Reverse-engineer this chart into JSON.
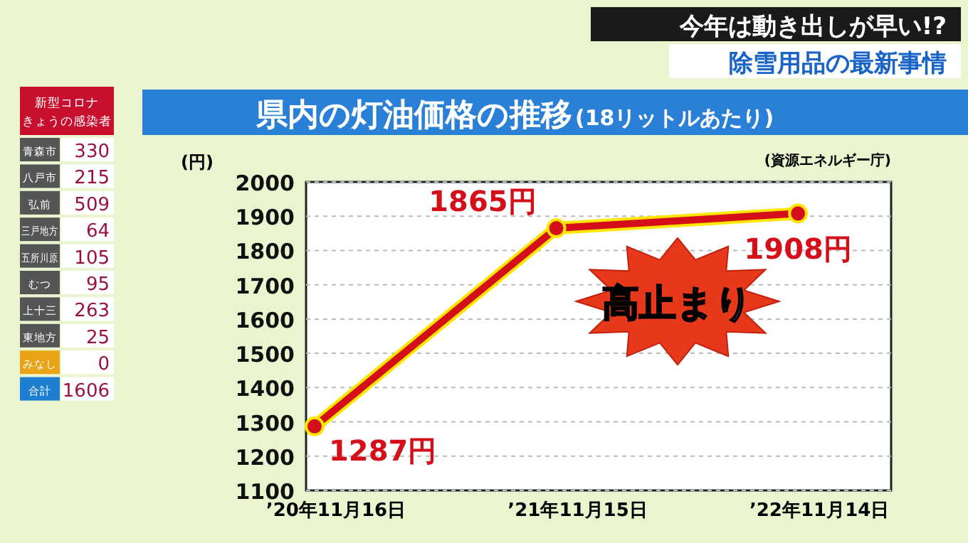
{
  "chart_data": [
    {
      "type": "line",
      "title": "県内の灯油価格の推移",
      "subtitle": "(18リットルあたり)",
      "ylabel": "(円)",
      "categories": [
        "’20年11月16日",
        "’21年11月15日",
        "’22年11月14日"
      ],
      "series": [
        {
          "color": "#d40f1a",
          "values": [
            1287,
            1865,
            1908
          ],
          "value_labels": [
            "1287円",
            "1865円",
            "1908円"
          ]
        }
      ],
      "ylim": [
        1100,
        2000
      ],
      "yticks": [
        1100,
        1200,
        1300,
        1400,
        1500,
        1600,
        1700,
        1800,
        1900,
        2000
      ],
      "grid": "y",
      "marker": "circle",
      "line_style": "solid",
      "annotations": [
        "高止まり",
        "(資源エネルギー庁)",
        "今年は動き出しが早い!?",
        "除雪用品の最新事情"
      ]
    },
    {
      "type": "other",
      "title": "新型コロナ",
      "subtitle": "きょうの感染者",
      "categories": [
        "青森市",
        "八戸市",
        "弘前",
        "三戸地方",
        "五所川原",
        "むつ",
        "上十三",
        "東地方",
        "みなし",
        "合計"
      ],
      "values": [
        330,
        215,
        509,
        64,
        105,
        95,
        263,
        25,
        0,
        1606
      ],
      "data_labels": true
    }
  ]
}
